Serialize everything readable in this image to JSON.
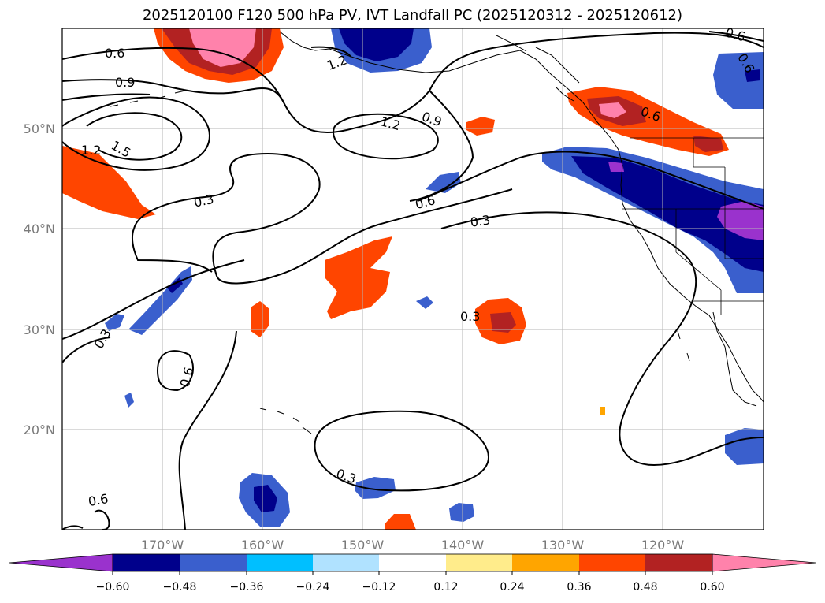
{
  "title": "2025120100 F120 500 hPa PV, IVT Landfall PC (2025120312 - 2025120612)",
  "lon_ticks": [
    "170°W",
    "160°W",
    "150°W",
    "140°W",
    "130°W",
    "120°W"
  ],
  "lat_ticks": [
    "50°N",
    "40°N",
    "30°N",
    "20°N"
  ],
  "contour_labels": [
    "0.6",
    "0.9",
    "1.2",
    "1.5",
    "1.2",
    "0.3",
    "1.2",
    "0.9",
    "0.6",
    "0.3",
    "0.6",
    "0.3",
    "0.3",
    "0.6",
    "0.6",
    "0.3",
    "0.6",
    "0.6"
  ],
  "colorbar": {
    "ticks": [
      "−0.60",
      "−0.48",
      "−0.36",
      "−0.24",
      "−0.12",
      "0.12",
      "0.24",
      "0.36",
      "0.48",
      "0.60"
    ],
    "colors": {
      "lt_neg060": "#9a32cd",
      "n060_n048": "#00008b",
      "n048_n036": "#3a5fcd",
      "n036_n024": "#00bfff",
      "n024_n012": "#b0e2ff",
      "n012_p012": "#ffffff",
      "p012_p024": "#ffec8b",
      "p024_p036": "#ffa500",
      "p036_p048": "#ff4500",
      "p048_p060": "#b22222",
      "gt_p060": "#ff82ab"
    }
  },
  "map": {
    "extent_lon": [
      -180,
      -110
    ],
    "extent_lat": [
      10,
      60
    ],
    "gridlines": true,
    "projection": "plate-carree"
  }
}
